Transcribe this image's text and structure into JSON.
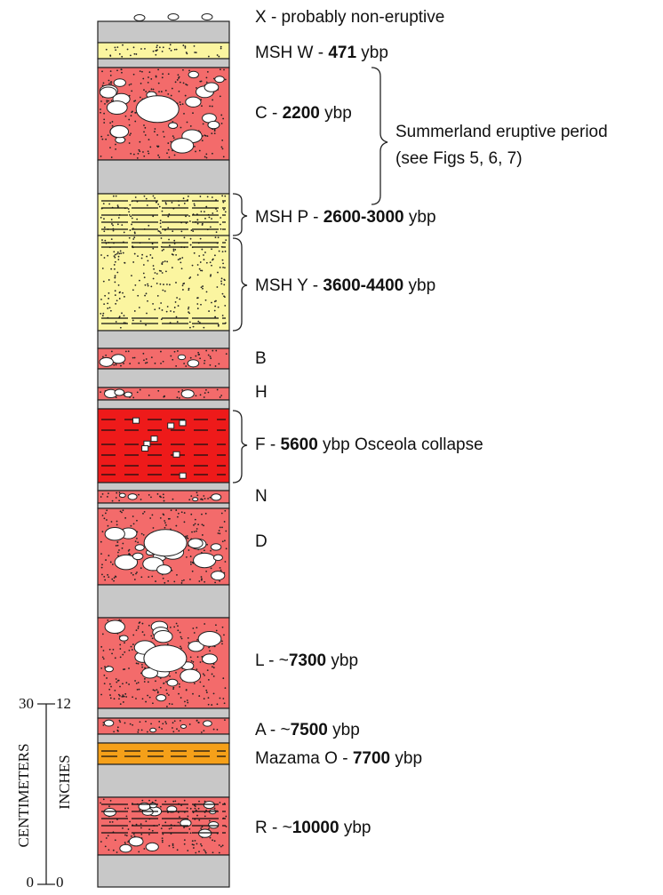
{
  "labels": [
    {
      "prefix": "X - probably non-eruptive"
    },
    {
      "prefix": "MSH W - ",
      "age": "471",
      "suffix": " ybp"
    },
    {
      "prefix": "C - ",
      "age": "2200",
      "suffix": " ybp"
    },
    {
      "prefix": "MSH P - ",
      "age": "2600-3000",
      "suffix": " ybp"
    },
    {
      "prefix": "MSH Y - ",
      "age": "3600-4400",
      "suffix": " ybp"
    },
    {
      "prefix": "B"
    },
    {
      "prefix": "H"
    },
    {
      "prefix": "F - ",
      "age": "5600",
      "suffix": " ybp Osceola collapse"
    },
    {
      "prefix": "N"
    },
    {
      "prefix": "D"
    },
    {
      "prefix": "L - ~",
      "age": "7300",
      "suffix": " ybp"
    },
    {
      "prefix": "A - ~",
      "age": "7500",
      "suffix": " ybp"
    },
    {
      "prefix": "Mazama O - ",
      "age": "7700",
      "suffix": " ybp"
    },
    {
      "prefix": "R - ~",
      "age": "10000",
      "suffix": " ybp"
    }
  ],
  "period": {
    "line1": "Summerland eruptive period",
    "line2": "(see Figs 5, 6, 7)"
  },
  "scale": {
    "cm_label": "CENTIMETERS",
    "in_label": "INCHES",
    "cm_top": "30",
    "in_top": "12",
    "cm_bottom": "0",
    "in_bottom": "0"
  }
}
